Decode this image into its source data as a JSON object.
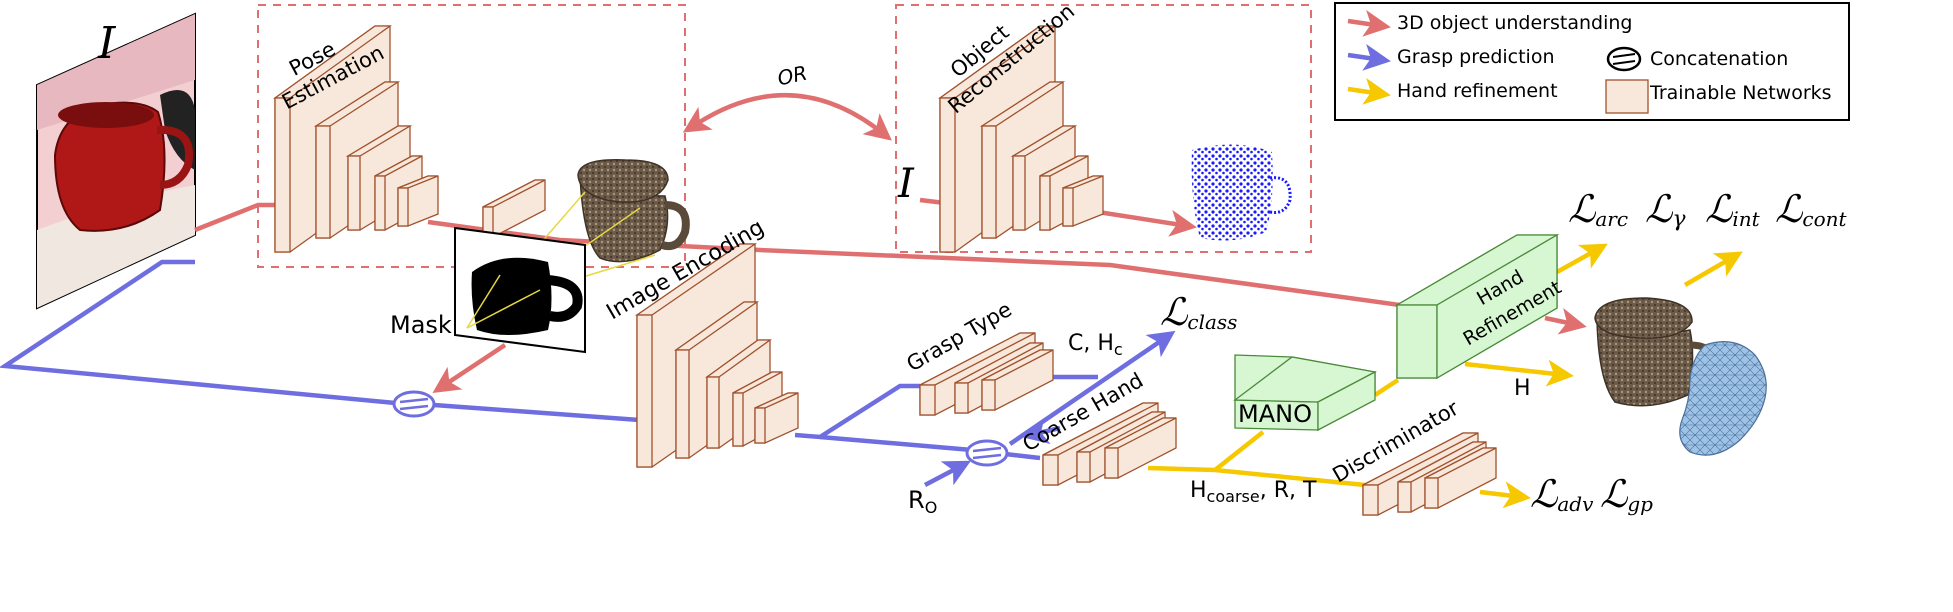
{
  "legend": {
    "items": [
      {
        "label": "3D object understanding",
        "color": "#e07070"
      },
      {
        "label": "Grasp prediction",
        "color": "#6e6ee0"
      },
      {
        "label": "Hand refinement",
        "color": "#f5c800"
      }
    ],
    "concat_label": "Concatenation",
    "trainable_label": "Trainable Networks"
  },
  "input": {
    "symbol": "I"
  },
  "modules": {
    "pose_estimation": [
      "Pose",
      "Estimation"
    ],
    "object_reconstruction": [
      "Object",
      "Reconstruction"
    ],
    "or_label": "OR",
    "image_encoding": "Image Encoding",
    "grasp_type": "Grasp Type",
    "coarse_hand": "Coarse Hand",
    "mano": "MANO",
    "hand_refinement": [
      "Hand",
      "Refinement"
    ],
    "discriminator": "Discriminator"
  },
  "labels": {
    "mask": "Mask",
    "recon_input": "I",
    "c_hc": {
      "main": "C, H",
      "sub": "c"
    },
    "ro": {
      "main": "R",
      "sub": "O"
    },
    "h_coarse": {
      "main": "H",
      "sub": "coarse",
      "rest": ", R, T"
    },
    "h": "H"
  },
  "losses": {
    "class": {
      "main": "ℒ",
      "sub": "class"
    },
    "arc": {
      "main": "ℒ",
      "sub": "arc"
    },
    "gamma": {
      "main": "ℒ",
      "sub": "γ"
    },
    "int": {
      "main": "ℒ",
      "sub": "int"
    },
    "cont": {
      "main": "ℒ",
      "sub": "cont"
    },
    "adv": {
      "main": "ℒ",
      "sub": "adv"
    },
    "gp": {
      "main": "ℒ",
      "sub": "gp"
    }
  },
  "colors": {
    "red": "#e07070",
    "blue": "#6e6ee0",
    "yellow": "#f5c800",
    "network_fill": "#f8e8dc",
    "mano_fill": "#d6f7d1"
  }
}
